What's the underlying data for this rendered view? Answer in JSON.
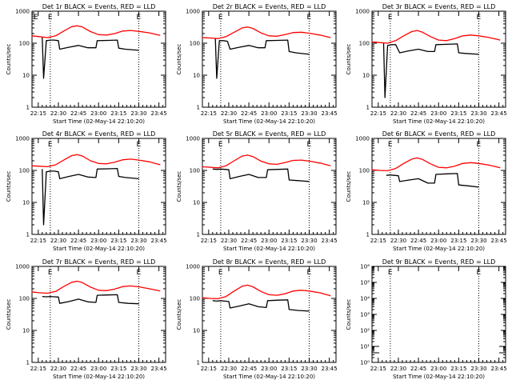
{
  "figure": {
    "x_tick_labels": [
      "22:15",
      "22:30",
      "22:45",
      "23:00",
      "23:15",
      "23:30",
      "23:45"
    ],
    "colors": {
      "events": "#000000",
      "lld": "#ff0000",
      "background": "#ffffff"
    }
  },
  "chart_data": [
    {
      "type": "line",
      "title": "Det 1r BLACK = Events, RED = LLD",
      "xlabel": "Start Time (02-May-14 22:10:20)",
      "ylabel": "Counts/sec",
      "y_scale": "log",
      "ylim": [
        1,
        1000
      ],
      "xlim": [
        "22:10:20",
        "23:50"
      ],
      "y_tick_labels": [
        "1",
        "10",
        "100",
        "1000"
      ],
      "markers": [
        "E",
        "E"
      ],
      "series": [
        {
          "color": "#000000",
          "x": [
            "22:18",
            "22:19",
            "22:21",
            "22:24",
            "22:27",
            "22:30",
            "22:31",
            "22:38",
            "22:45",
            "22:52",
            "22:58",
            "22:59",
            "23:07",
            "23:14",
            "23:15",
            "23:20",
            "23:30"
          ],
          "y": [
            150,
            8,
            120,
            125,
            125,
            120,
            65,
            75,
            85,
            72,
            72,
            120,
            122,
            125,
            70,
            65,
            60
          ]
        },
        {
          "color": "#ff0000",
          "x": [
            "22:10",
            "22:16",
            "22:22",
            "22:28",
            "22:34",
            "22:40",
            "22:44",
            "22:48",
            "22:54",
            "23:00",
            "23:06",
            "23:12",
            "23:18",
            "23:24",
            "23:30",
            "23:38",
            "23:46"
          ],
          "y": [
            170,
            160,
            150,
            170,
            240,
            330,
            350,
            320,
            230,
            185,
            180,
            200,
            240,
            250,
            235,
            210,
            175
          ]
        }
      ]
    },
    {
      "type": "line",
      "title": "Det 2r BLACK = Events, RED = LLD",
      "xlabel": "Start Time (02-May-14 22:10:20)",
      "ylabel": "Counts/sec",
      "y_scale": "log",
      "ylim": [
        1,
        1000
      ],
      "xlim": [
        "22:10:20",
        "23:50"
      ],
      "y_tick_labels": [
        "1",
        "10",
        "100",
        "1000"
      ],
      "markers": [
        "E",
        "E"
      ],
      "series": [
        {
          "color": "#000000",
          "x": [
            "22:20",
            "22:21",
            "22:23",
            "22:26",
            "22:29",
            "22:31",
            "22:38",
            "22:45",
            "22:52",
            "22:57",
            "22:58",
            "23:06",
            "23:14",
            "23:15",
            "23:20",
            "23:30"
          ],
          "y": [
            140,
            8,
            120,
            120,
            115,
            65,
            75,
            85,
            72,
            72,
            120,
            122,
            125,
            55,
            50,
            45
          ]
        },
        {
          "color": "#ff0000",
          "x": [
            "22:10",
            "22:16",
            "22:22",
            "22:28",
            "22:34",
            "22:40",
            "22:44",
            "22:48",
            "22:54",
            "23:00",
            "23:06",
            "23:12",
            "23:18",
            "23:24",
            "23:30",
            "23:38",
            "23:46"
          ],
          "y": [
            150,
            145,
            140,
            160,
            220,
            300,
            320,
            290,
            210,
            170,
            165,
            185,
            215,
            220,
            205,
            180,
            150
          ]
        }
      ]
    },
    {
      "type": "line",
      "title": "Det 3r BLACK = Events, RED = LLD",
      "xlabel": "Start Time (02-May-14 22:10:20)",
      "ylabel": "Counts/sec",
      "y_scale": "log",
      "ylim": [
        1,
        1000
      ],
      "xlim": [
        "22:10:20",
        "23:50"
      ],
      "y_tick_labels": [
        "1",
        "10",
        "100",
        "1000"
      ],
      "markers": [
        "E",
        "E"
      ],
      "series": [
        {
          "color": "#000000",
          "x": [
            "22:19",
            "22:20",
            "22:22",
            "22:25",
            "22:28",
            "22:31",
            "22:38",
            "22:45",
            "22:52",
            "22:57",
            "22:58",
            "23:06",
            "23:14",
            "23:15",
            "23:20",
            "23:30"
          ],
          "y": [
            100,
            2,
            85,
            90,
            90,
            50,
            58,
            65,
            55,
            55,
            90,
            92,
            95,
            50,
            48,
            45
          ]
        },
        {
          "color": "#ff0000",
          "x": [
            "22:10",
            "22:16",
            "22:22",
            "22:28",
            "22:34",
            "22:40",
            "22:44",
            "22:48",
            "22:54",
            "23:00",
            "23:06",
            "23:12",
            "23:18",
            "23:24",
            "23:30",
            "23:38",
            "23:46"
          ],
          "y": [
            110,
            105,
            100,
            120,
            170,
            230,
            250,
            220,
            160,
            125,
            120,
            140,
            170,
            180,
            170,
            150,
            125
          ]
        }
      ]
    },
    {
      "type": "line",
      "title": "Det 4r BLACK = Events, RED = LLD",
      "xlabel": "Start Time (02-May-14 22:10:20)",
      "ylabel": "Counts/sec",
      "y_scale": "log",
      "ylim": [
        1,
        1000
      ],
      "xlim": [
        "22:10:20",
        "23:50"
      ],
      "y_tick_labels": [
        "1",
        "10",
        "100",
        "1000"
      ],
      "markers": [
        "E",
        "E"
      ],
      "series": [
        {
          "color": "#000000",
          "x": [
            "22:18",
            "22:19",
            "22:21",
            "22:24",
            "22:27",
            "22:30",
            "22:31",
            "22:38",
            "22:45",
            "22:52",
            "22:58",
            "22:59",
            "23:07",
            "23:14",
            "23:15",
            "23:20",
            "23:30"
          ],
          "y": [
            110,
            2,
            90,
            95,
            95,
            90,
            55,
            65,
            75,
            62,
            60,
            110,
            112,
            115,
            65,
            60,
            55
          ]
        },
        {
          "color": "#ff0000",
          "x": [
            "22:10",
            "22:16",
            "22:22",
            "22:28",
            "22:34",
            "22:40",
            "22:44",
            "22:48",
            "22:54",
            "23:00",
            "23:06",
            "23:12",
            "23:18",
            "23:24",
            "23:30",
            "23:38",
            "23:46"
          ],
          "y": [
            140,
            135,
            130,
            150,
            210,
            290,
            310,
            280,
            200,
            165,
            160,
            180,
            215,
            225,
            210,
            185,
            150
          ]
        }
      ]
    },
    {
      "type": "line",
      "title": "Det 5r BLACK = Events, RED = LLD",
      "xlabel": "Start Time (02-May-14 22:10:20)",
      "ylabel": "Counts/sec",
      "y_scale": "log",
      "ylim": [
        1,
        1000
      ],
      "xlim": [
        "22:10:20",
        "23:50"
      ],
      "y_tick_labels": [
        "1",
        "10",
        "100",
        "1000"
      ],
      "markers": [
        "E",
        "E"
      ],
      "series": [
        {
          "color": "#000000",
          "x": [
            "22:18",
            "22:21",
            "22:24",
            "22:27",
            "22:30",
            "22:31",
            "22:38",
            "22:45",
            "22:52",
            "22:58",
            "22:59",
            "23:07",
            "23:14",
            "23:15",
            "23:22",
            "23:30"
          ],
          "y": [
            110,
            108,
            110,
            108,
            105,
            55,
            65,
            75,
            60,
            60,
            105,
            108,
            110,
            50,
            48,
            45
          ]
        },
        {
          "color": "#ff0000",
          "x": [
            "22:10",
            "22:16",
            "22:22",
            "22:28",
            "22:34",
            "22:40",
            "22:44",
            "22:48",
            "22:54",
            "23:00",
            "23:06",
            "23:12",
            "23:18",
            "23:24",
            "23:30",
            "23:38",
            "23:46"
          ],
          "y": [
            130,
            125,
            120,
            140,
            200,
            280,
            300,
            270,
            195,
            160,
            155,
            175,
            205,
            210,
            195,
            170,
            140
          ]
        }
      ]
    },
    {
      "type": "line",
      "title": "Det 6r BLACK = Events, RED = LLD",
      "xlabel": "Start Time (02-May-14 22:10:20)",
      "ylabel": "Counts/sec",
      "y_scale": "log",
      "ylim": [
        1,
        1000
      ],
      "xlim": [
        "22:10:20",
        "23:50"
      ],
      "y_tick_labels": [
        "1",
        "10",
        "100",
        "1000"
      ],
      "markers": [
        "E",
        "E"
      ],
      "series": [
        {
          "color": "#000000",
          "x": [
            "22:21",
            "22:24",
            "22:27",
            "22:30",
            "22:31",
            "22:38",
            "22:45",
            "22:52",
            "22:57",
            "22:58",
            "23:06",
            "23:14",
            "23:15",
            "23:22",
            "23:30"
          ],
          "y": [
            70,
            72,
            70,
            68,
            45,
            50,
            55,
            40,
            40,
            75,
            78,
            80,
            35,
            33,
            30
          ]
        },
        {
          "color": "#ff0000",
          "x": [
            "22:10",
            "22:16",
            "22:22",
            "22:28",
            "22:34",
            "22:40",
            "22:44",
            "22:48",
            "22:54",
            "23:00",
            "23:06",
            "23:12",
            "23:18",
            "23:24",
            "23:30",
            "23:38",
            "23:46"
          ],
          "y": [
            105,
            100,
            98,
            115,
            165,
            225,
            245,
            220,
            160,
            125,
            120,
            135,
            165,
            175,
            165,
            145,
            120
          ]
        }
      ]
    },
    {
      "type": "line",
      "title": "Det 7r BLACK = Events, RED = LLD",
      "xlabel": "Start Time (02-May-14 22:10:20)",
      "ylabel": "Counts/sec",
      "y_scale": "log",
      "ylim": [
        1,
        1000
      ],
      "xlim": [
        "22:10:20",
        "23:50"
      ],
      "y_tick_labels": [
        "1",
        "10",
        "100",
        "1000"
      ],
      "markers": [
        "E",
        "E"
      ],
      "series": [
        {
          "color": "#000000",
          "x": [
            "22:18",
            "22:21",
            "22:24",
            "22:27",
            "22:30",
            "22:31",
            "22:38",
            "22:45",
            "22:52",
            "22:58",
            "22:59",
            "23:07",
            "23:14",
            "23:15",
            "23:22",
            "23:30"
          ],
          "y": [
            115,
            112,
            115,
            112,
            110,
            70,
            80,
            95,
            78,
            75,
            125,
            128,
            130,
            75,
            70,
            68
          ]
        },
        {
          "color": "#ff0000",
          "x": [
            "22:10",
            "22:16",
            "22:22",
            "22:28",
            "22:34",
            "22:40",
            "22:44",
            "22:48",
            "22:54",
            "23:00",
            "23:06",
            "23:12",
            "23:18",
            "23:24",
            "23:30",
            "23:38",
            "23:46"
          ],
          "y": [
            160,
            150,
            145,
            165,
            235,
            320,
            345,
            310,
            225,
            180,
            175,
            195,
            235,
            245,
            230,
            200,
            170
          ]
        }
      ]
    },
    {
      "type": "line",
      "title": "Det 8r BLACK = Events, RED = LLD",
      "xlabel": "Start Time (02-May-14 22:10:20)",
      "ylabel": "Counts/sec",
      "y_scale": "log",
      "ylim": [
        1,
        1000
      ],
      "xlim": [
        "22:10:20",
        "23:50"
      ],
      "y_tick_labels": [
        "1",
        "10",
        "100",
        "1000"
      ],
      "markers": [
        "E",
        "E"
      ],
      "series": [
        {
          "color": "#000000",
          "x": [
            "22:18",
            "22:21",
            "22:24",
            "22:27",
            "22:30",
            "22:31",
            "22:38",
            "22:45",
            "22:52",
            "22:58",
            "22:59",
            "23:07",
            "23:14",
            "23:15",
            "23:22",
            "23:30"
          ],
          "y": [
            85,
            82,
            85,
            82,
            80,
            50,
            58,
            68,
            55,
            52,
            85,
            88,
            90,
            45,
            42,
            40
          ]
        },
        {
          "color": "#ff0000",
          "x": [
            "22:10",
            "22:16",
            "22:22",
            "22:28",
            "22:34",
            "22:40",
            "22:44",
            "22:48",
            "22:54",
            "23:00",
            "23:06",
            "23:12",
            "23:18",
            "23:24",
            "23:30",
            "23:38",
            "23:46"
          ],
          "y": [
            105,
            100,
            98,
            115,
            170,
            240,
            260,
            230,
            165,
            130,
            125,
            140,
            170,
            180,
            170,
            150,
            120
          ]
        }
      ]
    },
    {
      "type": "line",
      "title": "Det 9r BLACK = Events, RED = LLD",
      "xlabel": "Start Time (02-May-14 22:10:20)",
      "ylabel": "Counts/sec",
      "y_scale": "log",
      "ylim": [
        1,
        1000000
      ],
      "xlim": [
        "22:10:20",
        "23:50"
      ],
      "y_tick_labels": [
        "10⁰",
        "10¹",
        "10²",
        "10³",
        "10⁴",
        "10⁵",
        "10⁶"
      ],
      "markers": [
        "E",
        "E"
      ],
      "series": []
    }
  ]
}
